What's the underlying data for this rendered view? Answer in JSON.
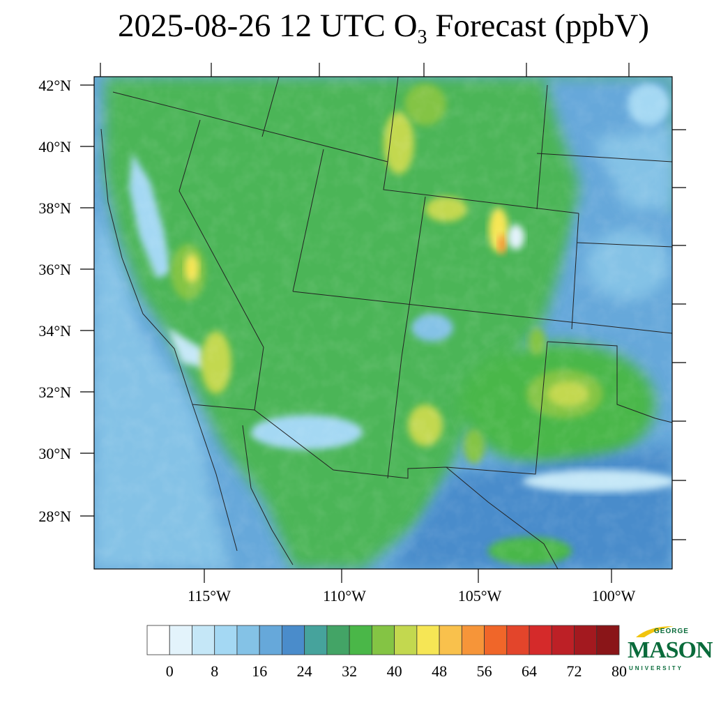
{
  "title": {
    "prefix": "2025-08-26 12 UTC O",
    "subscript": "3",
    "suffix": " Forecast (ppbV)"
  },
  "map": {
    "lat_labels": [
      "42°N",
      "40°N",
      "38°N",
      "36°N",
      "34°N",
      "32°N",
      "30°N",
      "28°N"
    ],
    "lon_labels": [
      "115°W",
      "110°W",
      "105°W",
      "100°W"
    ],
    "domain_lat_range": [
      26.4,
      42.3
    ],
    "domain_lon_range": [
      -119.3,
      -98.0
    ]
  },
  "colorbar": {
    "colors": [
      "#ffffff",
      "#e3f3fb",
      "#c5e7f7",
      "#a4d8f3",
      "#84c2e6",
      "#66a8da",
      "#4a8ccb",
      "#46a39c",
      "#43a466",
      "#4ab748",
      "#84c444",
      "#c3d84f",
      "#f6e655",
      "#f9c14c",
      "#f69539",
      "#f06629",
      "#e3452b",
      "#d52a2a",
      "#bd2026",
      "#a3191f",
      "#8a1518"
    ],
    "tick_labels": [
      "0",
      "8",
      "16",
      "24",
      "32",
      "40",
      "48",
      "56",
      "64",
      "72",
      "80"
    ],
    "units": "ppbV",
    "range": [
      0,
      84
    ],
    "interval": 4
  },
  "logo": {
    "line1": "GEORGE",
    "line2": "MASON",
    "line3": "UNIVERSITY",
    "color": "#0a6b3b",
    "accent": "#f1c40f"
  }
}
